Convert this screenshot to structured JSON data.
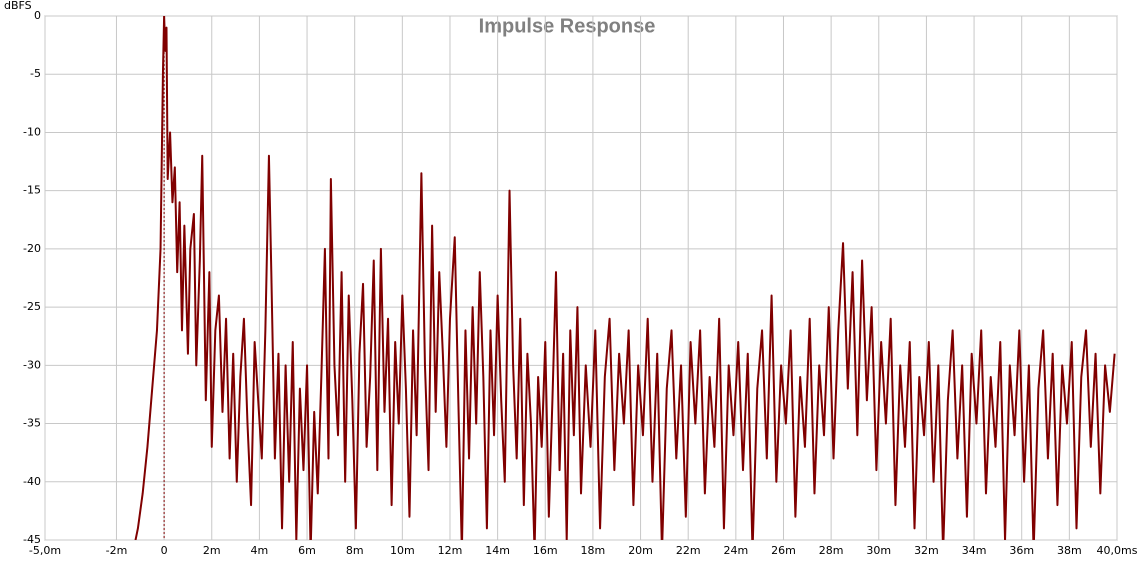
{
  "chart_data": {
    "type": "line",
    "title": "Impulse Response",
    "y_label": "dBFS",
    "color": "#800000",
    "grid": true,
    "vline": 0,
    "xlim": [
      -5,
      40
    ],
    "ylim": [
      -45,
      0
    ],
    "xticks": [
      {
        "value": -5,
        "label": "-5,0m"
      },
      {
        "value": -2,
        "label": "-2m"
      },
      0,
      {
        "value": 2,
        "label": "2m"
      },
      {
        "value": 4,
        "label": "4m"
      },
      {
        "value": 6,
        "label": "6m"
      },
      {
        "value": 8,
        "label": "8m"
      },
      {
        "value": 10,
        "label": "10m"
      },
      {
        "value": 12,
        "label": "12m"
      },
      {
        "value": 14,
        "label": "14m"
      },
      {
        "value": 16,
        "label": "16m"
      },
      {
        "value": 18,
        "label": "18m"
      },
      {
        "value": 20,
        "label": "20m"
      },
      {
        "value": 22,
        "label": "22m"
      },
      {
        "value": 24,
        "label": "24m"
      },
      {
        "value": 26,
        "label": "26m"
      },
      {
        "value": 28,
        "label": "28m"
      },
      {
        "value": 30,
        "label": "30m"
      },
      {
        "value": 32,
        "label": "32m"
      },
      {
        "value": 34,
        "label": "34m"
      },
      {
        "value": 36,
        "label": "36m"
      },
      {
        "value": 38,
        "label": "38m"
      },
      {
        "value": 40,
        "label": "40,0ms"
      }
    ],
    "yticks": [
      0,
      -5,
      -10,
      -15,
      -20,
      -25,
      -30,
      -35,
      -40,
      -45
    ],
    "x": [
      -1.3,
      -1.1,
      -0.9,
      -0.7,
      -0.5,
      -0.3,
      -0.15,
      -0.05,
      0,
      0.05,
      0.1,
      0.15,
      0.25,
      0.35,
      0.45,
      0.55,
      0.65,
      0.75,
      0.85,
      1.0,
      1.1,
      1.25,
      1.35,
      1.5,
      1.6,
      1.75,
      1.9,
      2.0,
      2.15,
      2.3,
      2.45,
      2.6,
      2.75,
      2.9,
      3.05,
      3.2,
      3.35,
      3.5,
      3.65,
      3.8,
      3.95,
      4.1,
      4.25,
      4.4,
      4.5,
      4.65,
      4.8,
      4.95,
      5.1,
      5.25,
      5.4,
      5.55,
      5.7,
      5.85,
      6.0,
      6.15,
      6.3,
      6.45,
      6.6,
      6.75,
      6.9,
      7.0,
      7.15,
      7.3,
      7.45,
      7.6,
      7.75,
      7.9,
      8.05,
      8.2,
      8.35,
      8.5,
      8.65,
      8.8,
      8.95,
      9.1,
      9.25,
      9.4,
      9.55,
      9.7,
      9.85,
      10.0,
      10.15,
      10.3,
      10.45,
      10.6,
      10.8,
      10.95,
      11.1,
      11.25,
      11.4,
      11.55,
      11.7,
      11.85,
      12.0,
      12.2,
      12.35,
      12.5,
      12.65,
      12.8,
      12.95,
      13.1,
      13.25,
      13.4,
      13.55,
      13.7,
      13.85,
      14.0,
      14.15,
      14.3,
      14.5,
      14.65,
      14.8,
      14.95,
      15.1,
      15.25,
      15.4,
      15.55,
      15.7,
      15.85,
      16.0,
      16.15,
      16.3,
      16.45,
      16.6,
      16.75,
      16.9,
      17.05,
      17.2,
      17.35,
      17.5,
      17.7,
      17.9,
      18.1,
      18.3,
      18.5,
      18.7,
      18.9,
      19.1,
      19.3,
      19.5,
      19.7,
      19.9,
      20.1,
      20.3,
      20.5,
      20.7,
      20.9,
      21.1,
      21.3,
      21.5,
      21.7,
      21.9,
      22.1,
      22.3,
      22.5,
      22.7,
      22.9,
      23.1,
      23.3,
      23.5,
      23.7,
      23.9,
      24.1,
      24.3,
      24.5,
      24.7,
      24.9,
      25.1,
      25.3,
      25.5,
      25.7,
      25.9,
      26.1,
      26.3,
      26.5,
      26.7,
      26.9,
      27.1,
      27.3,
      27.5,
      27.7,
      27.9,
      28.1,
      28.3,
      28.5,
      28.7,
      28.9,
      29.1,
      29.3,
      29.5,
      29.7,
      29.9,
      30.1,
      30.3,
      30.5,
      30.7,
      30.9,
      31.1,
      31.3,
      31.5,
      31.7,
      31.9,
      32.1,
      32.3,
      32.5,
      32.7,
      32.9,
      33.1,
      33.3,
      33.5,
      33.7,
      33.9,
      34.1,
      34.3,
      34.5,
      34.7,
      34.9,
      35.1,
      35.3,
      35.5,
      35.7,
      35.9,
      36.1,
      36.3,
      36.5,
      36.7,
      36.9,
      37.1,
      37.3,
      37.5,
      37.7,
      37.9,
      38.1,
      38.3,
      38.5,
      38.7,
      38.9,
      39.1,
      39.3,
      39.5,
      39.7,
      39.9
    ],
    "series": [
      {
        "name": "Impulse",
        "color": "#800000",
        "values": [
          -46,
          -44,
          -41,
          -37,
          -32,
          -27,
          -20,
          -5,
          0,
          -3,
          -1,
          -14,
          -10,
          -16,
          -13,
          -22,
          -16,
          -27,
          -18,
          -29,
          -20,
          -17,
          -30,
          -21,
          -12,
          -33,
          -22,
          -37,
          -27,
          -24,
          -34,
          -26,
          -38,
          -29,
          -40,
          -31,
          -26,
          -35,
          -42,
          -28,
          -33,
          -38,
          -27,
          -12,
          -22,
          -38,
          -29,
          -44,
          -30,
          -40,
          -28,
          -45,
          -32,
          -39,
          -30,
          -46,
          -34,
          -41,
          -31,
          -20,
          -38,
          -14,
          -30,
          -36,
          -22,
          -40,
          -24,
          -33,
          -44,
          -29,
          -23,
          -37,
          -31,
          -21,
          -39,
          -20,
          -34,
          -26,
          -42,
          -28,
          -35,
          -24,
          -32,
          -43,
          -27,
          -36,
          -13.5,
          -30,
          -39,
          -18,
          -34,
          -22,
          -29,
          -37,
          -26,
          -19,
          -33,
          -46,
          -27,
          -38,
          -25,
          -35,
          -22,
          -31,
          -44,
          -27,
          -36,
          -24,
          -33,
          -40,
          -15,
          -30,
          -38,
          -26,
          -42,
          -29,
          -35,
          -46,
          -31,
          -37,
          -28,
          -43,
          -33,
          -22,
          -39,
          -29,
          -45,
          -27,
          -36,
          -25,
          -41,
          -30,
          -37,
          -27,
          -44,
          -31,
          -26,
          -39,
          -29,
          -35,
          -27,
          -42,
          -30,
          -36,
          -26,
          -40,
          -29,
          -46,
          -32,
          -27,
          -38,
          -30,
          -43,
          -28,
          -35,
          -27,
          -41,
          -31,
          -37,
          -26,
          -44,
          -30,
          -36,
          -28,
          -39,
          -29,
          -46,
          -32,
          -27,
          -38,
          -24,
          -40,
          -30,
          -35,
          -27,
          -43,
          -31,
          -37,
          -26,
          -41,
          -30,
          -36,
          -25,
          -38,
          -27,
          -19.5,
          -32,
          -22,
          -36,
          -21,
          -33,
          -25,
          -39,
          -28,
          -35,
          -26,
          -42,
          -30,
          -37,
          -28,
          -44,
          -31,
          -36,
          -28,
          -40,
          -30,
          -46,
          -33,
          -27,
          -38,
          -30,
          -43,
          -29,
          -35,
          -27,
          -41,
          -31,
          -37,
          -28,
          -45,
          -30,
          -36,
          -27,
          -40,
          -30,
          -46,
          -32,
          -27,
          -38,
          -29,
          -42,
          -30,
          -35,
          -28,
          -44,
          -31,
          -27,
          -37,
          -29,
          -41,
          -30,
          -34,
          -29
        ]
      }
    ]
  }
}
